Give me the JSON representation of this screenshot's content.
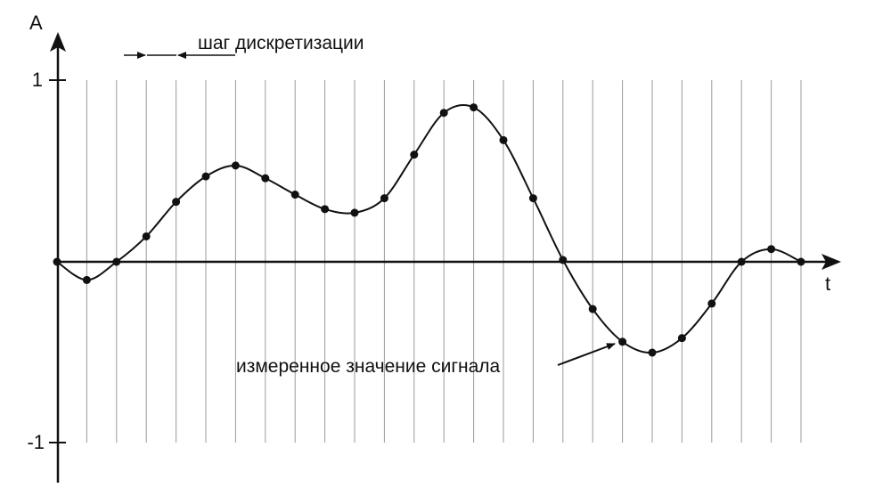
{
  "colors": {
    "background": "#ffffff",
    "ink": "#111111",
    "gridline": "#9a9a9a"
  },
  "labels": {
    "y_axis": "A",
    "x_axis": "t",
    "y_tick_top": "1",
    "y_tick_bottom": "-1",
    "sampling_step": "шаг дискретизации",
    "measured_value": "измеренное значение сигнала"
  },
  "chart_data": {
    "type": "line",
    "xlabel": "t",
    "ylabel": "A",
    "yticks": [
      "1",
      "-1"
    ],
    "ylim": [
      -1,
      1
    ],
    "sample_count": 26,
    "grid": "vertical sampling lines at each sample",
    "x": [
      0,
      1,
      2,
      3,
      4,
      5,
      6,
      7,
      8,
      9,
      10,
      11,
      12,
      13,
      14,
      15,
      16,
      17,
      18,
      19,
      20,
      21,
      22,
      23,
      24,
      25
    ],
    "values": [
      0.0,
      -0.1,
      0.0,
      0.14,
      0.33,
      0.47,
      0.53,
      0.46,
      0.37,
      0.29,
      0.27,
      0.35,
      0.59,
      0.82,
      0.85,
      0.67,
      0.35,
      0.01,
      -0.26,
      -0.44,
      -0.5,
      -0.42,
      -0.23,
      0.0,
      0.07,
      0.0
    ]
  }
}
